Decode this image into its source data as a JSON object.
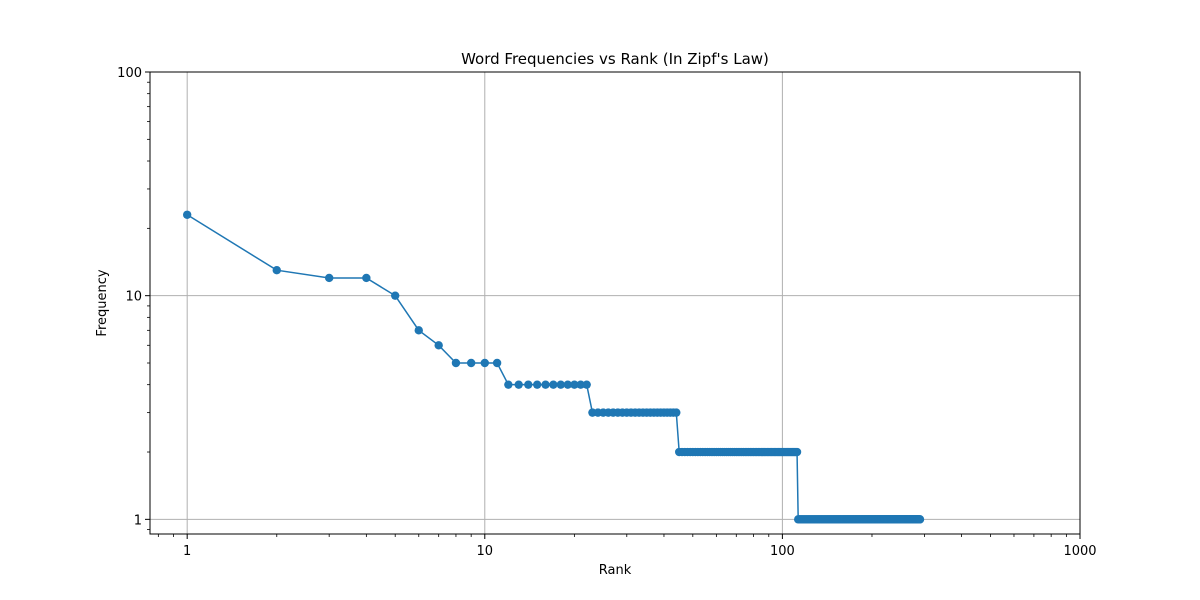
{
  "chart_data": {
    "type": "line",
    "title": "Word Frequencies vs Rank (In Zipf's Law)",
    "xlabel": "Rank",
    "ylabel": "Frequency",
    "xscale": "log",
    "yscale": "log",
    "xlim": [
      0.75,
      1000
    ],
    "ylim": [
      0.86,
      100
    ],
    "x_ticks": [
      1,
      10,
      100,
      1000
    ],
    "x_tick_labels": [
      "1",
      "10",
      "100",
      "1000"
    ],
    "y_ticks": [
      1,
      10,
      100
    ],
    "y_tick_labels": [
      "1",
      "10",
      "100"
    ],
    "grid": true,
    "marker": "circle",
    "color": "#1f77b4",
    "series": [
      {
        "runs": [
          {
            "from_rank": 1,
            "to_rank": 1,
            "frequency": 23
          },
          {
            "from_rank": 2,
            "to_rank": 2,
            "frequency": 13
          },
          {
            "from_rank": 3,
            "to_rank": 4,
            "frequency": 12
          },
          {
            "from_rank": 5,
            "to_rank": 5,
            "frequency": 10
          },
          {
            "from_rank": 6,
            "to_rank": 6,
            "frequency": 7
          },
          {
            "from_rank": 7,
            "to_rank": 7,
            "frequency": 6
          },
          {
            "from_rank": 8,
            "to_rank": 11,
            "frequency": 5
          },
          {
            "from_rank": 12,
            "to_rank": 22,
            "frequency": 4
          },
          {
            "from_rank": 23,
            "to_rank": 44,
            "frequency": 3
          },
          {
            "from_rank": 45,
            "to_rank": 112,
            "frequency": 2
          },
          {
            "from_rank": 113,
            "to_rank": 290,
            "frequency": 1
          }
        ]
      }
    ]
  }
}
